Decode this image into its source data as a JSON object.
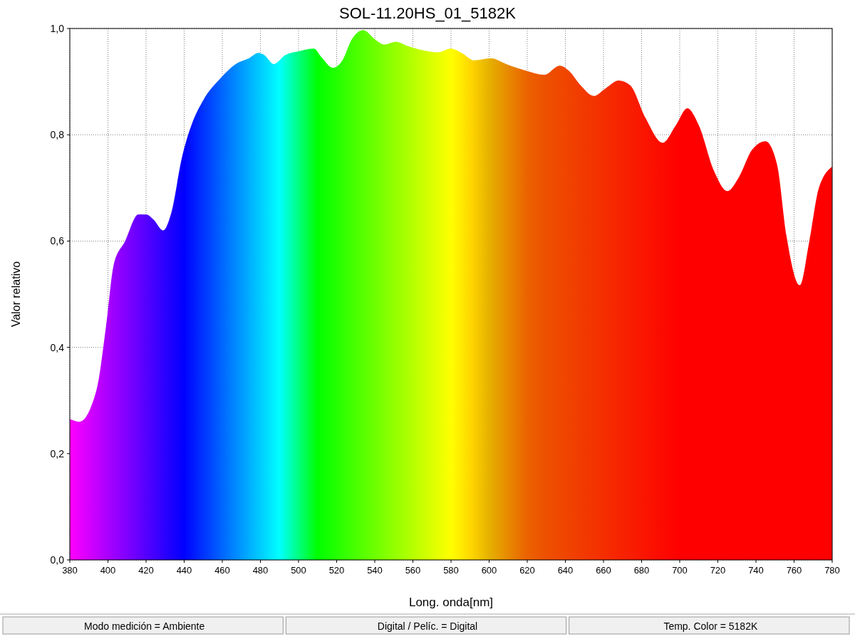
{
  "chart_data": {
    "type": "area",
    "title": "SOL-11.20HS_01_5182K",
    "xlabel": "Long. onda[nm]",
    "ylabel": "Valor relativo",
    "x": [
      380,
      385,
      394,
      399,
      403,
      409,
      416,
      420,
      424,
      429,
      433,
      439,
      444,
      450,
      459,
      467,
      474,
      479,
      482,
      487,
      493,
      500,
      508,
      512,
      518,
      523,
      528,
      534,
      540,
      545,
      551,
      558,
      568,
      573,
      580,
      586,
      592,
      601,
      609,
      620,
      629,
      637,
      642,
      648,
      655,
      661,
      668,
      674,
      682,
      691,
      698,
      704,
      710,
      718,
      725,
      731,
      738,
      745,
      751,
      756,
      763,
      768,
      773,
      780
    ],
    "series": [
      {
        "values": [
          0.265,
          0.26,
          0.32,
          0.44,
          0.555,
          0.6,
          0.65,
          0.65,
          0.64,
          0.62,
          0.65,
          0.76,
          0.82,
          0.865,
          0.906,
          0.933,
          0.944,
          0.954,
          0.95,
          0.933,
          0.95,
          0.957,
          0.962,
          0.946,
          0.926,
          0.94,
          0.98,
          0.997,
          0.98,
          0.97,
          0.975,
          0.966,
          0.957,
          0.955,
          0.962,
          0.953,
          0.94,
          0.944,
          0.933,
          0.92,
          0.913,
          0.93,
          0.92,
          0.893,
          0.873,
          0.887,
          0.902,
          0.893,
          0.832,
          0.785,
          0.818,
          0.85,
          0.818,
          0.732,
          0.694,
          0.72,
          0.772,
          0.788,
          0.745,
          0.61,
          0.517,
          0.6,
          0.7,
          0.74
        ]
      }
    ],
    "xlim": [
      380,
      780
    ],
    "xticks": [
      380,
      400,
      420,
      440,
      460,
      480,
      500,
      520,
      540,
      560,
      580,
      600,
      620,
      640,
      660,
      680,
      700,
      720,
      740,
      760,
      780
    ],
    "ylim": [
      0,
      1
    ],
    "yticks": [
      {
        "value": 0,
        "label": "0,0"
      },
      {
        "value": 0.2,
        "label": "0,2"
      },
      {
        "value": 0.4,
        "label": "0,4"
      },
      {
        "value": 0.6,
        "label": "0,6"
      },
      {
        "value": 0.8,
        "label": "0,8"
      },
      {
        "value": 1,
        "label": "1,0"
      }
    ],
    "grid": true,
    "annotations": [
      "Modo medición = Ambiente",
      "Digital / Pelíc. = Digital",
      "Temp. Color = 5182K"
    ]
  }
}
